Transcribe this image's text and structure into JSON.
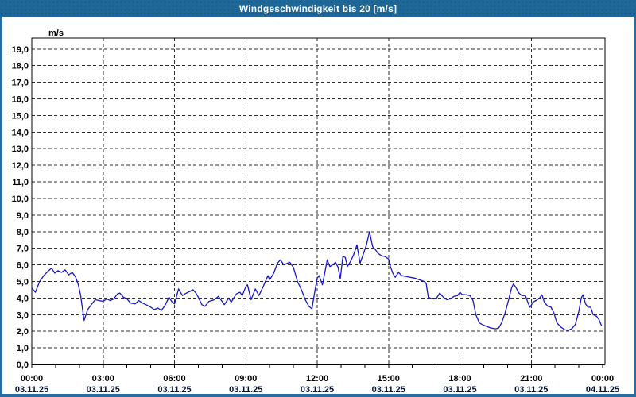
{
  "window": {
    "title": "Windgeschwindigkeit bis 20 [m/s]"
  },
  "colors": {
    "titlebar_bg": "#1e6899",
    "frame": "#2a6ba0",
    "plot_border": "#000000",
    "grid": "#2e2e2e",
    "line": "#1717c3",
    "tick_text": "#000000",
    "date_text": "#001133",
    "background": "#ffffff"
  },
  "chart_data": {
    "type": "line",
    "title": "Windgeschwindigkeit bis 20 [m/s]",
    "ylabel": "m/s",
    "xlabel": "",
    "grid": "dashed",
    "legend": "none",
    "ylim": [
      0,
      19.66
    ],
    "xlim_hours": [
      0,
      24.1
    ],
    "y_ticks": [
      {
        "v": 19,
        "label": "19,0"
      },
      {
        "v": 18,
        "label": "18,0"
      },
      {
        "v": 17,
        "label": "17,0"
      },
      {
        "v": 16,
        "label": "16,0"
      },
      {
        "v": 15,
        "label": "15,0"
      },
      {
        "v": 14,
        "label": "14,0"
      },
      {
        "v": 13,
        "label": "13,0"
      },
      {
        "v": 12,
        "label": "12,0"
      },
      {
        "v": 11,
        "label": "11,0"
      },
      {
        "v": 10,
        "label": "10,0"
      },
      {
        "v": 9,
        "label": "9,0"
      },
      {
        "v": 8,
        "label": "8,0"
      },
      {
        "v": 7,
        "label": "7,0"
      },
      {
        "v": 6,
        "label": "6,0"
      },
      {
        "v": 5,
        "label": "5,0"
      },
      {
        "v": 4,
        "label": "4,0"
      },
      {
        "v": 3,
        "label": "3,0"
      },
      {
        "v": 2,
        "label": "2,0"
      },
      {
        "v": 1,
        "label": "1,0"
      },
      {
        "v": 0,
        "label": "0,0"
      }
    ],
    "x_ticks": [
      {
        "h": 0,
        "time": "00:00",
        "date": "03.11.25"
      },
      {
        "h": 3,
        "time": "03:00",
        "date": "03.11.25"
      },
      {
        "h": 6,
        "time": "06:00",
        "date": "03.11.25"
      },
      {
        "h": 9,
        "time": "09:00",
        "date": "03.11.25"
      },
      {
        "h": 12,
        "time": "12:00",
        "date": "03.11.25"
      },
      {
        "h": 15,
        "time": "15:00",
        "date": "03.11.25"
      },
      {
        "h": 18,
        "time": "18:00",
        "date": "03.11.25"
      },
      {
        "h": 21,
        "time": "21:00",
        "date": "03.11.25"
      },
      {
        "h": 24,
        "time": "00:00",
        "date": "04.11.25"
      }
    ],
    "minor_tick_every_hours": 1,
    "series": [
      {
        "name": "Windgeschwindigkeit",
        "unit": "m/s",
        "color": "#1717c3",
        "points": [
          [
            0.0,
            4.6
          ],
          [
            0.15,
            4.35
          ],
          [
            0.33,
            5.0
          ],
          [
            0.5,
            5.35
          ],
          [
            0.67,
            5.6
          ],
          [
            0.83,
            5.8
          ],
          [
            0.97,
            5.5
          ],
          [
            1.1,
            5.65
          ],
          [
            1.25,
            5.55
          ],
          [
            1.4,
            5.7
          ],
          [
            1.55,
            5.4
          ],
          [
            1.7,
            5.55
          ],
          [
            1.83,
            5.3
          ],
          [
            1.95,
            4.85
          ],
          [
            2.05,
            4.2
          ],
          [
            2.2,
            2.65
          ],
          [
            2.35,
            3.3
          ],
          [
            2.5,
            3.6
          ],
          [
            2.67,
            3.9
          ],
          [
            2.83,
            3.85
          ],
          [
            3.0,
            3.8
          ],
          [
            3.15,
            3.95
          ],
          [
            3.3,
            3.85
          ],
          [
            3.45,
            3.95
          ],
          [
            3.6,
            4.25
          ],
          [
            3.7,
            4.3
          ],
          [
            3.85,
            4.05
          ],
          [
            4.0,
            3.95
          ],
          [
            4.15,
            3.7
          ],
          [
            4.35,
            3.65
          ],
          [
            4.5,
            3.85
          ],
          [
            4.65,
            3.7
          ],
          [
            4.8,
            3.6
          ],
          [
            5.0,
            3.45
          ],
          [
            5.15,
            3.3
          ],
          [
            5.3,
            3.4
          ],
          [
            5.45,
            3.25
          ],
          [
            5.6,
            3.55
          ],
          [
            5.77,
            4.05
          ],
          [
            5.88,
            3.8
          ],
          [
            6.0,
            3.65
          ],
          [
            6.17,
            4.55
          ],
          [
            6.33,
            4.15
          ],
          [
            6.5,
            4.3
          ],
          [
            6.65,
            4.4
          ],
          [
            6.78,
            4.5
          ],
          [
            6.9,
            4.3
          ],
          [
            7.0,
            4.05
          ],
          [
            7.15,
            3.6
          ],
          [
            7.28,
            3.5
          ],
          [
            7.45,
            3.8
          ],
          [
            7.67,
            3.9
          ],
          [
            7.85,
            4.1
          ],
          [
            7.95,
            3.9
          ],
          [
            8.1,
            3.6
          ],
          [
            8.28,
            4.0
          ],
          [
            8.38,
            3.75
          ],
          [
            8.6,
            4.25
          ],
          [
            8.75,
            4.35
          ],
          [
            8.85,
            4.15
          ],
          [
            9.0,
            4.7
          ],
          [
            9.07,
            4.8
          ],
          [
            9.22,
            3.9
          ],
          [
            9.4,
            4.55
          ],
          [
            9.55,
            4.15
          ],
          [
            9.7,
            4.6
          ],
          [
            9.93,
            5.35
          ],
          [
            10.0,
            5.1
          ],
          [
            10.17,
            5.5
          ],
          [
            10.33,
            6.1
          ],
          [
            10.45,
            6.3
          ],
          [
            10.6,
            6.0
          ],
          [
            10.75,
            6.1
          ],
          [
            10.85,
            6.15
          ],
          [
            11.0,
            5.85
          ],
          [
            11.17,
            5.0
          ],
          [
            11.35,
            4.45
          ],
          [
            11.5,
            3.9
          ],
          [
            11.65,
            3.5
          ],
          [
            11.78,
            3.35
          ],
          [
            11.9,
            4.4
          ],
          [
            12.0,
            5.2
          ],
          [
            12.08,
            5.35
          ],
          [
            12.22,
            4.8
          ],
          [
            12.42,
            6.3
          ],
          [
            12.53,
            5.9
          ],
          [
            12.65,
            6.0
          ],
          [
            12.77,
            6.15
          ],
          [
            12.88,
            5.85
          ],
          [
            12.97,
            5.15
          ],
          [
            13.08,
            6.5
          ],
          [
            13.18,
            6.45
          ],
          [
            13.27,
            5.9
          ],
          [
            13.4,
            6.2
          ],
          [
            13.53,
            6.6
          ],
          [
            13.67,
            7.2
          ],
          [
            13.8,
            6.1
          ],
          [
            13.93,
            6.6
          ],
          [
            14.07,
            7.2
          ],
          [
            14.2,
            8.0
          ],
          [
            14.33,
            7.1
          ],
          [
            14.43,
            6.95
          ],
          [
            14.55,
            6.7
          ],
          [
            14.7,
            6.55
          ],
          [
            14.85,
            6.5
          ],
          [
            15.0,
            6.35
          ],
          [
            15.08,
            5.9
          ],
          [
            15.18,
            5.5
          ],
          [
            15.28,
            5.25
          ],
          [
            15.42,
            5.55
          ],
          [
            15.55,
            5.35
          ],
          [
            15.75,
            5.3
          ],
          [
            15.9,
            5.25
          ],
          [
            16.1,
            5.2
          ],
          [
            16.3,
            5.1
          ],
          [
            16.5,
            5.0
          ],
          [
            16.58,
            4.9
          ],
          [
            16.67,
            4.05
          ],
          [
            16.83,
            3.95
          ],
          [
            17.0,
            3.95
          ],
          [
            17.15,
            4.3
          ],
          [
            17.3,
            4.05
          ],
          [
            17.45,
            3.9
          ],
          [
            17.6,
            3.95
          ],
          [
            17.75,
            4.1
          ],
          [
            17.9,
            4.15
          ],
          [
            18.0,
            4.35
          ],
          [
            18.1,
            4.2
          ],
          [
            18.25,
            4.2
          ],
          [
            18.42,
            4.15
          ],
          [
            18.55,
            3.85
          ],
          [
            18.67,
            3.0
          ],
          [
            18.82,
            2.5
          ],
          [
            18.95,
            2.4
          ],
          [
            19.1,
            2.3
          ],
          [
            19.3,
            2.2
          ],
          [
            19.5,
            2.15
          ],
          [
            19.63,
            2.2
          ],
          [
            19.75,
            2.5
          ],
          [
            19.9,
            3.1
          ],
          [
            20.05,
            3.9
          ],
          [
            20.17,
            4.6
          ],
          [
            20.25,
            4.85
          ],
          [
            20.35,
            4.65
          ],
          [
            20.48,
            4.3
          ],
          [
            20.6,
            4.15
          ],
          [
            20.75,
            4.15
          ],
          [
            20.88,
            3.65
          ],
          [
            20.95,
            3.45
          ],
          [
            21.07,
            3.75
          ],
          [
            21.2,
            3.85
          ],
          [
            21.35,
            4.0
          ],
          [
            21.45,
            4.2
          ],
          [
            21.55,
            3.75
          ],
          [
            21.7,
            3.5
          ],
          [
            21.83,
            3.45
          ],
          [
            21.95,
            3.1
          ],
          [
            22.08,
            2.5
          ],
          [
            22.25,
            2.25
          ],
          [
            22.4,
            2.1
          ],
          [
            22.55,
            2.05
          ],
          [
            22.7,
            2.15
          ],
          [
            22.85,
            2.4
          ],
          [
            23.0,
            3.2
          ],
          [
            23.1,
            4.0
          ],
          [
            23.17,
            4.2
          ],
          [
            23.28,
            3.65
          ],
          [
            23.38,
            3.45
          ],
          [
            23.5,
            3.45
          ],
          [
            23.6,
            3.0
          ],
          [
            23.75,
            2.9
          ],
          [
            23.85,
            2.7
          ],
          [
            23.95,
            2.35
          ]
        ]
      }
    ]
  }
}
